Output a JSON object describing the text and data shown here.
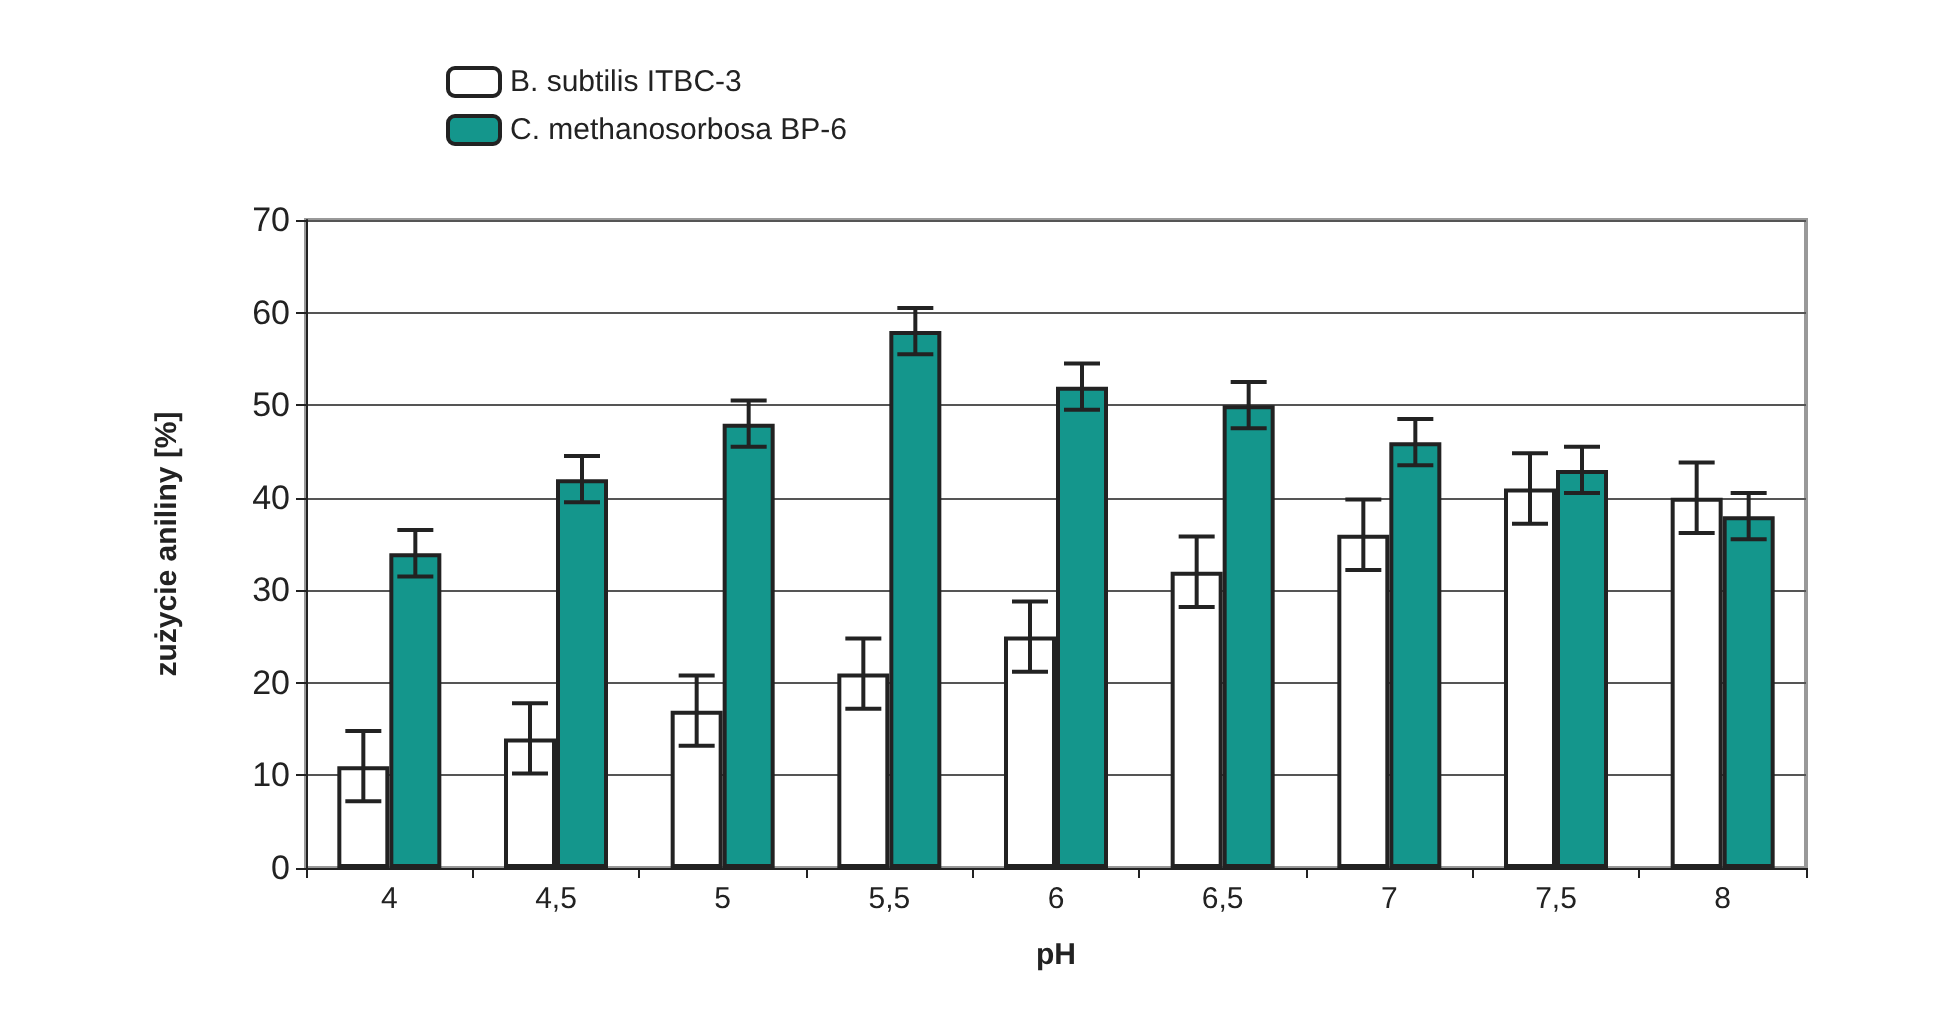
{
  "chart_data": {
    "type": "bar",
    "xlabel": "pH",
    "ylabel": "zużycie aniliny [%]",
    "categories": [
      "4",
      "4,5",
      "5",
      "5,5",
      "6",
      "6,5",
      "7",
      "7,5",
      "8"
    ],
    "series": [
      {
        "name": "B. subtilis ITBC-3",
        "color": "#ffffff",
        "values": [
          11,
          14,
          17,
          21,
          25,
          32,
          36,
          41,
          40
        ],
        "errors": [
          3.8,
          3.8,
          3.8,
          3.8,
          3.8,
          3.8,
          3.8,
          3.8,
          3.8
        ]
      },
      {
        "name": "C. methanosorbosa BP-6",
        "color": "#14968c",
        "values": [
          34,
          42,
          48,
          58,
          52,
          50,
          46,
          43,
          38
        ],
        "errors": [
          2.5,
          2.5,
          2.5,
          2.5,
          2.5,
          2.5,
          2.5,
          2.5,
          2.5
        ]
      }
    ],
    "ylim": [
      0,
      70
    ],
    "yticks": [
      0,
      10,
      20,
      30,
      40,
      50,
      60,
      70
    ],
    "grid": "y",
    "legend": "top"
  }
}
